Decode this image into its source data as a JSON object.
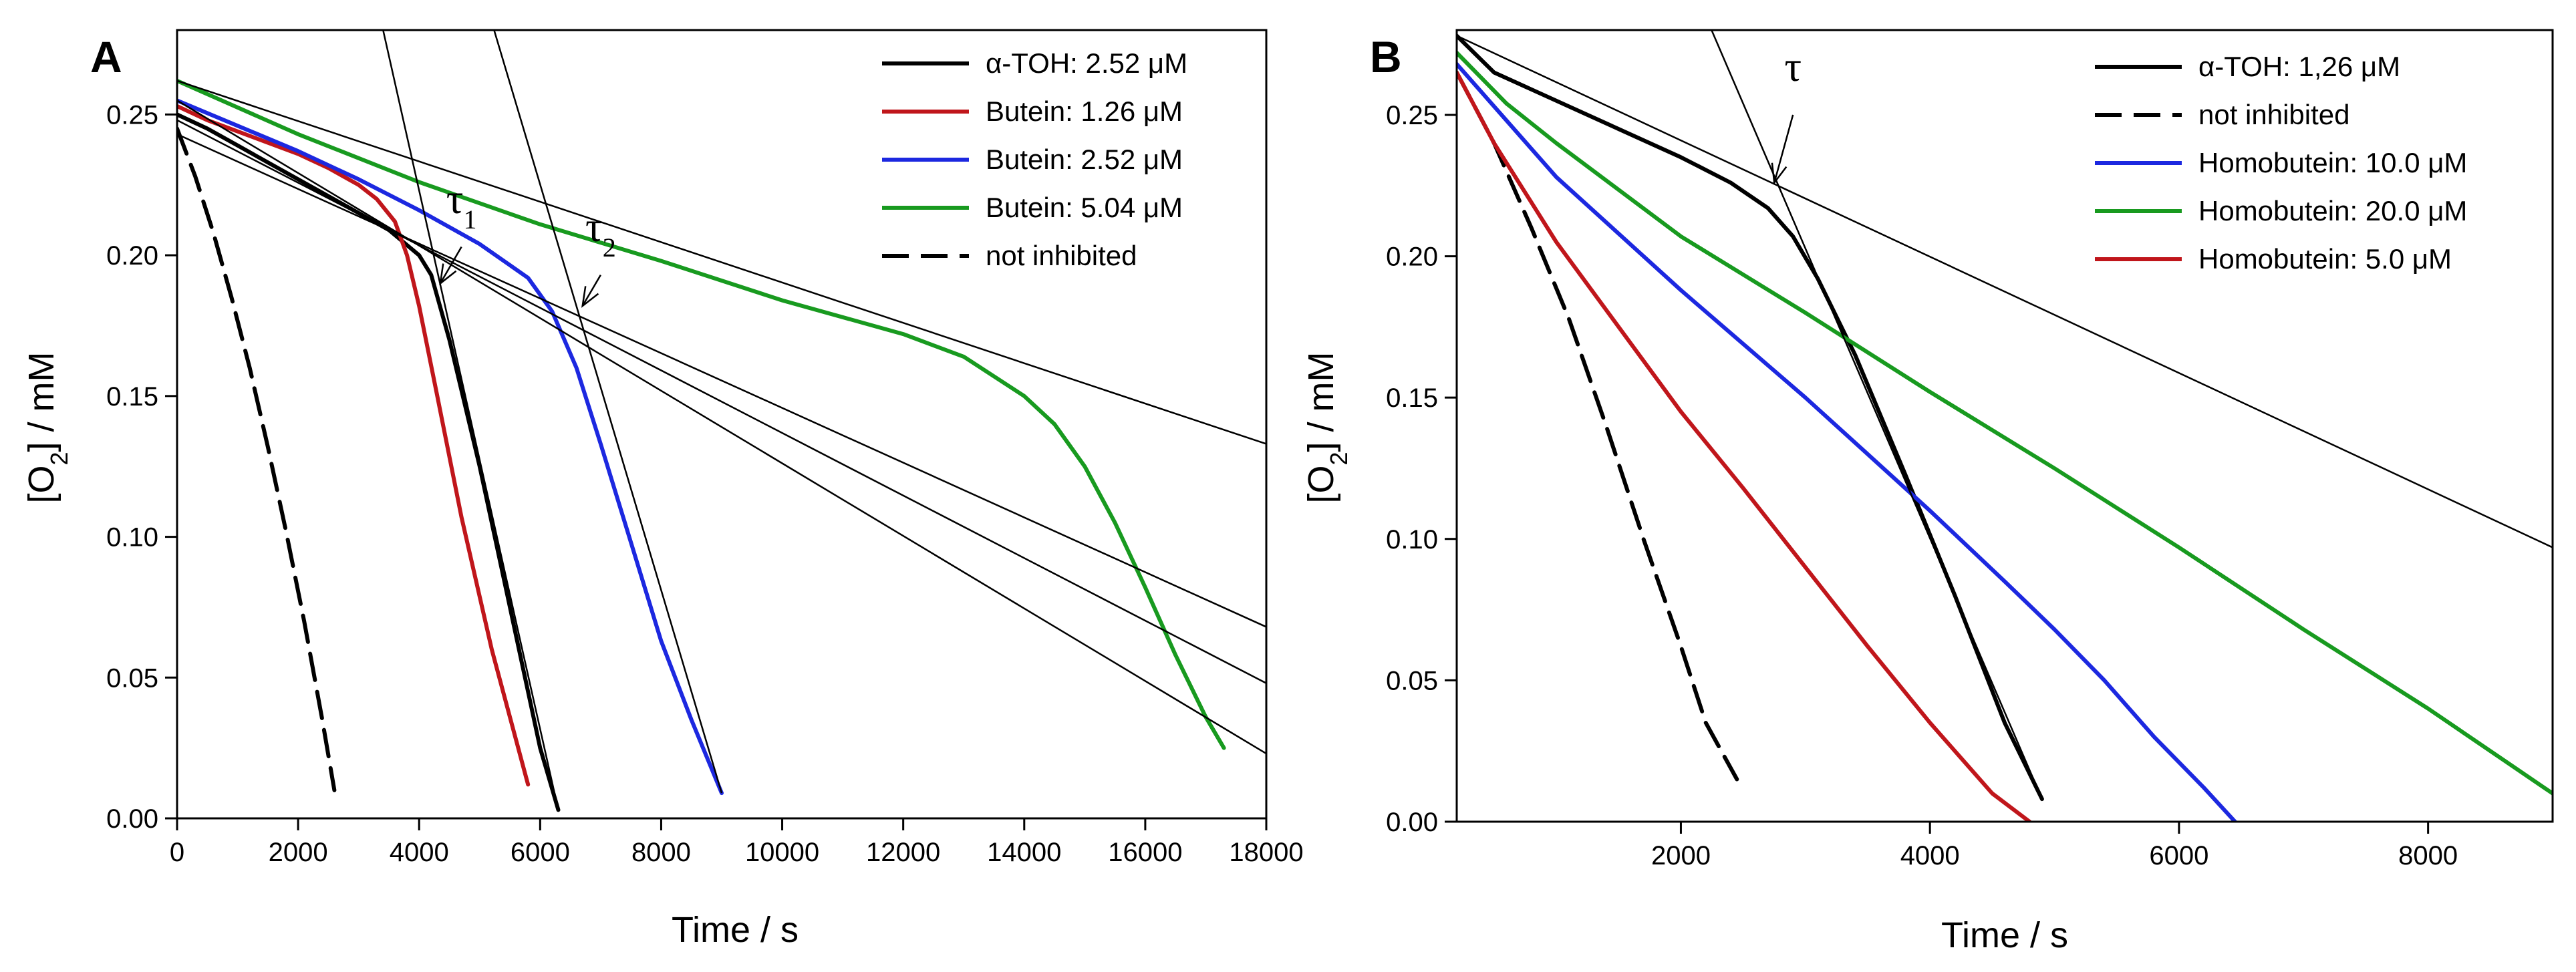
{
  "chart_data": [
    {
      "type": "line",
      "panel_label": "A",
      "xlabel": "Time / s",
      "ylabel_main": "[O",
      "ylabel_sub": "2",
      "ylabel_rest": "] / mM",
      "xlim": [
        0,
        18000
      ],
      "ylim": [
        0,
        0.28
      ],
      "xticks": [
        0,
        2000,
        4000,
        6000,
        8000,
        10000,
        12000,
        14000,
        16000,
        18000
      ],
      "yticks": [
        0.0,
        0.05,
        0.1,
        0.15,
        0.2,
        0.25
      ],
      "ytick_labels": [
        "0.00",
        "0.05",
        "0.10",
        "0.15",
        "0.20",
        "0.25"
      ],
      "grid": false,
      "legend_position": "top-right",
      "series": [
        {
          "name": "α-TOH: 2.52 μM",
          "color": "#000000",
          "dash": "solid",
          "x": [
            0,
            500,
            1000,
            1500,
            2000,
            2500,
            3000,
            3500,
            4000,
            4200,
            4500,
            5000,
            5500,
            6000,
            6300
          ],
          "y": [
            0.25,
            0.245,
            0.239,
            0.233,
            0.227,
            0.221,
            0.215,
            0.209,
            0.2,
            0.193,
            0.17,
            0.125,
            0.075,
            0.025,
            0.003
          ]
        },
        {
          "name": "Butein: 1.26 μM",
          "color": "#c0161b",
          "dash": "solid",
          "x": [
            0,
            500,
            1000,
            1500,
            2000,
            2500,
            3000,
            3300,
            3600,
            3800,
            4000,
            4300,
            4700,
            5200,
            5800
          ],
          "y": [
            0.253,
            0.248,
            0.244,
            0.24,
            0.236,
            0.231,
            0.225,
            0.22,
            0.212,
            0.2,
            0.182,
            0.15,
            0.107,
            0.06,
            0.012
          ]
        },
        {
          "name": "Butein: 2.52 μM",
          "color": "#1c28e0",
          "dash": "solid",
          "x": [
            0,
            1000,
            2000,
            3000,
            4000,
            5000,
            5800,
            6200,
            6600,
            7000,
            7500,
            8000,
            8500,
            9000
          ],
          "y": [
            0.255,
            0.246,
            0.237,
            0.227,
            0.216,
            0.204,
            0.192,
            0.18,
            0.16,
            0.133,
            0.098,
            0.063,
            0.035,
            0.009
          ]
        },
        {
          "name": "Butein: 5.04 μM",
          "color": "#189a1f",
          "dash": "solid",
          "x": [
            0,
            2000,
            4000,
            6000,
            8000,
            10000,
            12000,
            13000,
            14000,
            14500,
            15000,
            15500,
            16000,
            16500,
            17000,
            17300
          ],
          "y": [
            0.262,
            0.243,
            0.226,
            0.211,
            0.198,
            0.184,
            0.172,
            0.164,
            0.15,
            0.14,
            0.125,
            0.105,
            0.082,
            0.058,
            0.036,
            0.025
          ]
        },
        {
          "name": "not inhibited",
          "color": "#000000",
          "dash": "dashed",
          "x": [
            0,
            300,
            600,
            900,
            1200,
            1500,
            1800,
            2100,
            2400,
            2600
          ],
          "y": [
            0.245,
            0.228,
            0.208,
            0.185,
            0.16,
            0.132,
            0.102,
            0.07,
            0.035,
            0.01
          ]
        }
      ],
      "tangents": [
        {
          "x": [
            0,
            18000
          ],
          "y": [
            0.243,
            0.068
          ]
        },
        {
          "x": [
            0,
            18000
          ],
          "y": [
            0.255,
            0.023
          ]
        },
        {
          "x": [
            0,
            18000
          ],
          "y": [
            0.248,
            0.048
          ]
        },
        {
          "x": [
            0,
            18000
          ],
          "y": [
            0.262,
            0.133
          ]
        },
        {
          "x": [
            3300,
            6300
          ],
          "y": [
            0.29,
            0.003
          ]
        },
        {
          "x": [
            5100,
            9000
          ],
          "y": [
            0.29,
            0.009
          ]
        }
      ],
      "annotations": [
        {
          "symbol": "τ",
          "subscript": "1",
          "text_x": 4700,
          "text_y": 0.215,
          "arrow_from": [
            4700,
            0.203
          ],
          "arrow_to": [
            4350,
            0.19
          ]
        },
        {
          "symbol": "τ",
          "subscript": "2",
          "text_x": 7000,
          "text_y": 0.205,
          "arrow_from": [
            7000,
            0.193
          ],
          "arrow_to": [
            6700,
            0.182
          ]
        }
      ]
    },
    {
      "type": "line",
      "panel_label": "B",
      "xlabel": "Time / s",
      "ylabel_main": "[O",
      "ylabel_sub": "2",
      "ylabel_rest": "] / mM",
      "xlim": [
        200,
        9000
      ],
      "ylim": [
        0,
        0.28
      ],
      "xticks": [
        2000,
        4000,
        6000,
        8000
      ],
      "yticks": [
        0.0,
        0.05,
        0.1,
        0.15,
        0.2,
        0.25
      ],
      "ytick_labels": [
        "0.00",
        "0.05",
        "0.10",
        "0.15",
        "0.20",
        "0.25"
      ],
      "grid": false,
      "legend_position": "top-right",
      "series": [
        {
          "name": "α-TOH: 1,26 μM",
          "color": "#000000",
          "dash": "solid",
          "x": [
            200,
            500,
            1000,
            1500,
            2000,
            2400,
            2700,
            2900,
            3100,
            3400,
            3800,
            4200,
            4600,
            4900
          ],
          "y": [
            0.278,
            0.265,
            0.255,
            0.245,
            0.235,
            0.226,
            0.217,
            0.207,
            0.192,
            0.165,
            0.123,
            0.08,
            0.035,
            0.008
          ]
        },
        {
          "name": "not inhibited",
          "color": "#000000",
          "dash": "dashed",
          "x": [
            200,
            500,
            800,
            1100,
            1400,
            1700,
            2000,
            2200,
            2450
          ],
          "y": [
            0.265,
            0.24,
            0.21,
            0.178,
            0.14,
            0.1,
            0.062,
            0.035,
            0.015
          ]
        },
        {
          "name": "Homobutein: 10.0 μM",
          "color": "#1c28e0",
          "dash": "solid",
          "x": [
            200,
            600,
            1000,
            2000,
            3000,
            4000,
            4600,
            5000,
            5400,
            5800,
            6200,
            6450
          ],
          "y": [
            0.268,
            0.248,
            0.228,
            0.188,
            0.15,
            0.11,
            0.085,
            0.068,
            0.05,
            0.03,
            0.012,
            0.0
          ]
        },
        {
          "name": "Homobutein: 20.0 μM",
          "color": "#189a1f",
          "dash": "solid",
          "x": [
            200,
            600,
            1000,
            2000,
            3000,
            4000,
            5000,
            6000,
            7000,
            8000,
            9000
          ],
          "y": [
            0.272,
            0.254,
            0.24,
            0.207,
            0.18,
            0.152,
            0.125,
            0.097,
            0.068,
            0.04,
            0.01
          ]
        },
        {
          "name": "Homobutein: 5.0 μM",
          "color": "#c0161b",
          "dash": "solid",
          "x": [
            200,
            500,
            1000,
            1500,
            2000,
            2500,
            3000,
            3500,
            4000,
            4500,
            4800
          ],
          "y": [
            0.265,
            0.24,
            0.205,
            0.175,
            0.145,
            0.118,
            0.09,
            0.062,
            0.035,
            0.01,
            0.0
          ]
        }
      ],
      "tangents": [
        {
          "x": [
            200,
            9000
          ],
          "y": [
            0.278,
            0.097
          ]
        },
        {
          "x": [
            2100,
            4900
          ],
          "y": [
            0.295,
            0.008
          ]
        }
      ],
      "annotations": [
        {
          "symbol": "τ",
          "subscript": "",
          "text_x": 2900,
          "text_y": 0.262,
          "arrow_from": [
            2900,
            0.25
          ],
          "arrow_to": [
            2750,
            0.226
          ]
        }
      ]
    }
  ]
}
